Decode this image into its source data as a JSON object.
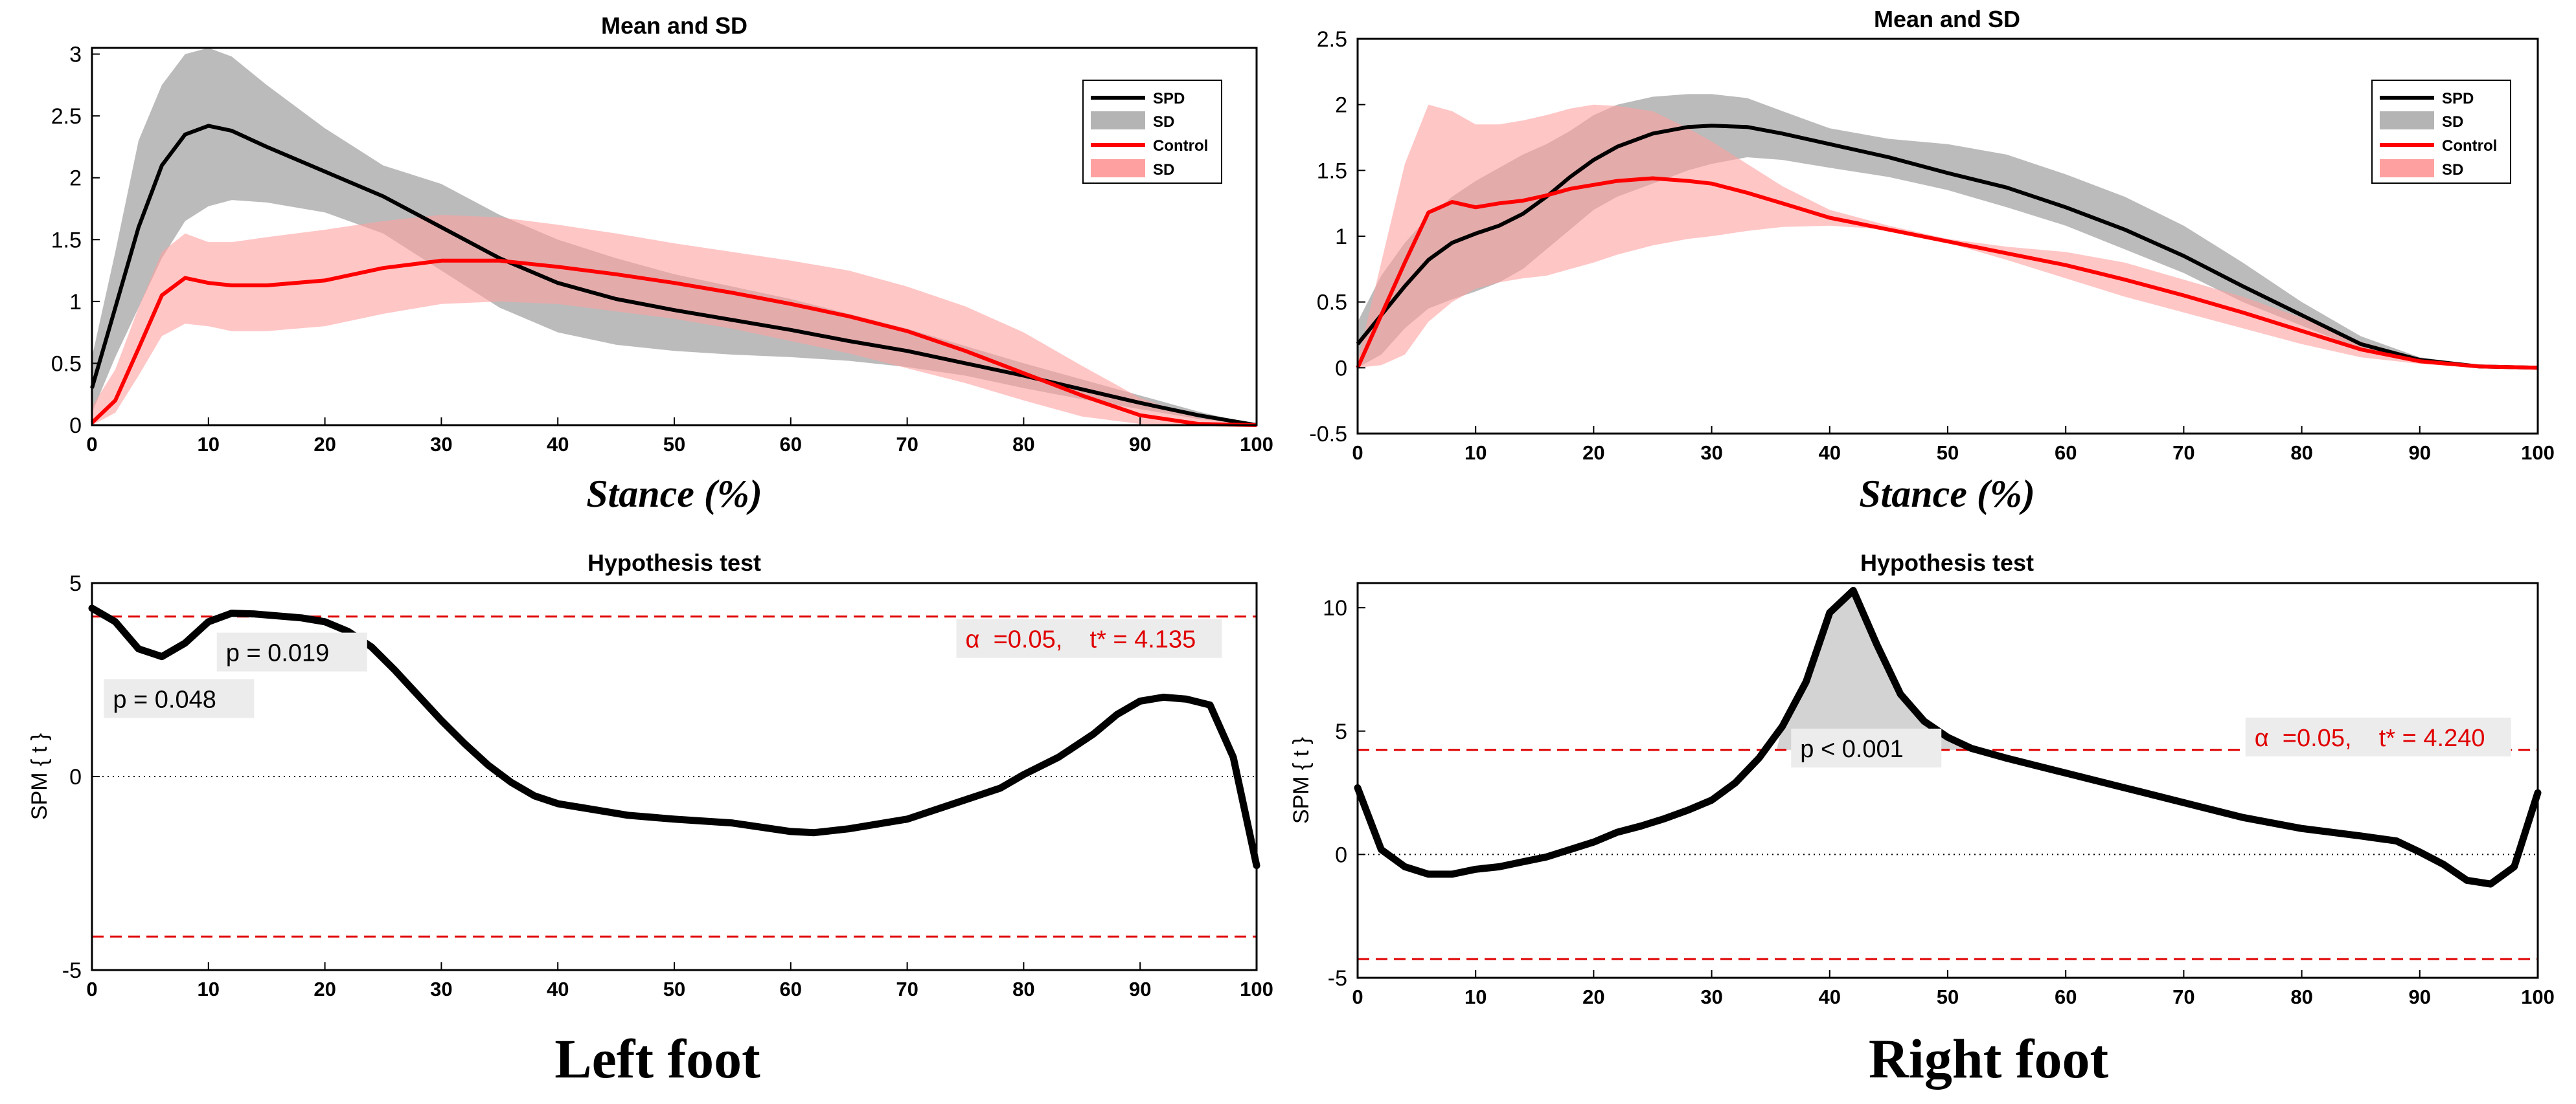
{
  "colors": {
    "spd": "#000000",
    "spd_band": "#b4b4b4",
    "control": "#ff0000",
    "control_band": "#ffa0a0",
    "threshold": "#e00000",
    "cluster": "#d3d3d3",
    "annotation_bg": "#ececec"
  },
  "captions": {
    "left": "Left foot",
    "right": "Right foot"
  },
  "chart_data": [
    {
      "id": "left_mean",
      "type": "line",
      "title": "Mean and SD",
      "xlabel": "Stance (%)",
      "ylabel": "",
      "xlim": [
        0,
        100
      ],
      "ylim": [
        0,
        3.05
      ],
      "xticks": [
        0,
        10,
        20,
        30,
        40,
        50,
        60,
        70,
        80,
        90,
        100
      ],
      "yticks": [
        0,
        0.5,
        1,
        1.5,
        2,
        2.5,
        3
      ],
      "ytick_labels": [
        "0",
        "0.5",
        "1",
        "1.5",
        "2",
        "2.5",
        "3"
      ],
      "legend": {
        "position": "top-right",
        "entries": [
          "SPD",
          "SD",
          "Control",
          "SD"
        ]
      },
      "series": [
        {
          "name": "SPD",
          "x": [
            0,
            2,
            4,
            6,
            8,
            10,
            12,
            15,
            20,
            25,
            30,
            35,
            40,
            45,
            50,
            55,
            60,
            65,
            70,
            75,
            80,
            85,
            90,
            95,
            100
          ],
          "y": [
            0.3,
            0.95,
            1.6,
            2.1,
            2.35,
            2.42,
            2.38,
            2.25,
            2.05,
            1.85,
            1.6,
            1.35,
            1.15,
            1.02,
            0.93,
            0.85,
            0.77,
            0.68,
            0.6,
            0.5,
            0.4,
            0.29,
            0.18,
            0.08,
            0.0
          ],
          "lower": [
            0.1,
            0.55,
            0.95,
            1.35,
            1.65,
            1.77,
            1.82,
            1.8,
            1.72,
            1.55,
            1.25,
            0.95,
            0.75,
            0.65,
            0.6,
            0.57,
            0.55,
            0.52,
            0.47,
            0.4,
            0.3,
            0.21,
            0.13,
            0.05,
            0.0
          ],
          "upper": [
            0.55,
            1.4,
            2.3,
            2.75,
            3.0,
            3.05,
            2.98,
            2.75,
            2.4,
            2.1,
            1.95,
            1.7,
            1.5,
            1.35,
            1.22,
            1.12,
            1.02,
            0.9,
            0.78,
            0.64,
            0.5,
            0.37,
            0.24,
            0.11,
            0.0
          ]
        },
        {
          "name": "Control",
          "x": [
            0,
            2,
            4,
            6,
            8,
            10,
            12,
            15,
            20,
            25,
            30,
            35,
            40,
            45,
            50,
            55,
            60,
            65,
            70,
            75,
            80,
            85,
            90,
            95,
            100
          ],
          "y": [
            0.02,
            0.2,
            0.62,
            1.05,
            1.19,
            1.15,
            1.13,
            1.13,
            1.17,
            1.27,
            1.33,
            1.33,
            1.28,
            1.22,
            1.15,
            1.07,
            0.98,
            0.88,
            0.76,
            0.6,
            0.42,
            0.24,
            0.08,
            0.01,
            0.0
          ],
          "lower": [
            0.0,
            0.1,
            0.4,
            0.72,
            0.82,
            0.8,
            0.76,
            0.76,
            0.8,
            0.9,
            0.98,
            1.0,
            0.98,
            0.92,
            0.86,
            0.78,
            0.68,
            0.58,
            0.46,
            0.34,
            0.2,
            0.07,
            0.01,
            0.0,
            0.0
          ],
          "upper": [
            0.15,
            0.45,
            0.95,
            1.4,
            1.55,
            1.48,
            1.48,
            1.52,
            1.58,
            1.65,
            1.7,
            1.68,
            1.62,
            1.55,
            1.47,
            1.4,
            1.33,
            1.25,
            1.12,
            0.96,
            0.75,
            0.48,
            0.22,
            0.06,
            0.0
          ]
        }
      ]
    },
    {
      "id": "right_mean",
      "type": "line",
      "title": "Mean and SD",
      "xlabel": "Stance (%)",
      "ylabel": "",
      "xlim": [
        0,
        100
      ],
      "ylim": [
        -0.5,
        2.5
      ],
      "xticks": [
        0,
        10,
        20,
        30,
        40,
        50,
        60,
        70,
        80,
        90,
        100
      ],
      "yticks": [
        -0.5,
        0,
        0.5,
        1,
        1.5,
        2,
        2.5
      ],
      "ytick_labels": [
        "-0.5",
        "0",
        "0.5",
        "1",
        "1.5",
        "2",
        "2.5"
      ],
      "legend": {
        "position": "top-right",
        "entries": [
          "SPD",
          "SD",
          "Control",
          "SD"
        ]
      },
      "series": [
        {
          "name": "SPD",
          "x": [
            0,
            2,
            4,
            6,
            8,
            10,
            12,
            14,
            16,
            18,
            20,
            22,
            25,
            28,
            30,
            33,
            36,
            40,
            45,
            50,
            55,
            60,
            65,
            70,
            75,
            80,
            85,
            90,
            95,
            100
          ],
          "y": [
            0.18,
            0.4,
            0.62,
            0.82,
            0.95,
            1.02,
            1.08,
            1.17,
            1.3,
            1.45,
            1.58,
            1.68,
            1.78,
            1.83,
            1.84,
            1.83,
            1.78,
            1.7,
            1.6,
            1.48,
            1.37,
            1.22,
            1.05,
            0.85,
            0.62,
            0.4,
            0.18,
            0.06,
            0.01,
            0.0
          ],
          "lower": [
            0.0,
            0.1,
            0.3,
            0.45,
            0.52,
            0.58,
            0.65,
            0.75,
            0.9,
            1.05,
            1.2,
            1.3,
            1.4,
            1.5,
            1.55,
            1.6,
            1.58,
            1.52,
            1.45,
            1.35,
            1.22,
            1.08,
            0.9,
            0.72,
            0.5,
            0.32,
            0.14,
            0.05,
            0.01,
            0.0
          ],
          "upper": [
            0.35,
            0.7,
            0.95,
            1.15,
            1.3,
            1.42,
            1.52,
            1.62,
            1.7,
            1.8,
            1.92,
            2.0,
            2.06,
            2.08,
            2.08,
            2.05,
            1.95,
            1.82,
            1.74,
            1.7,
            1.62,
            1.47,
            1.3,
            1.08,
            0.8,
            0.5,
            0.24,
            0.08,
            0.02,
            0.0
          ]
        },
        {
          "name": "Control",
          "x": [
            0,
            2,
            4,
            6,
            8,
            10,
            12,
            14,
            16,
            18,
            20,
            22,
            25,
            28,
            30,
            33,
            36,
            40,
            45,
            50,
            55,
            60,
            65,
            70,
            75,
            80,
            85,
            90,
            95,
            100
          ],
          "y": [
            0.0,
            0.4,
            0.8,
            1.18,
            1.26,
            1.22,
            1.25,
            1.27,
            1.31,
            1.36,
            1.39,
            1.42,
            1.44,
            1.42,
            1.4,
            1.33,
            1.25,
            1.14,
            1.05,
            0.96,
            0.87,
            0.78,
            0.67,
            0.55,
            0.42,
            0.28,
            0.14,
            0.05,
            0.01,
            0.0
          ],
          "lower": [
            0.0,
            0.02,
            0.1,
            0.35,
            0.5,
            0.6,
            0.65,
            0.68,
            0.7,
            0.75,
            0.8,
            0.86,
            0.93,
            0.98,
            1.0,
            1.04,
            1.07,
            1.08,
            1.05,
            0.95,
            0.82,
            0.68,
            0.54,
            0.42,
            0.3,
            0.18,
            0.08,
            0.03,
            0.0,
            0.0
          ],
          "upper": [
            0.05,
            0.8,
            1.55,
            2.0,
            1.95,
            1.85,
            1.85,
            1.88,
            1.92,
            1.97,
            2.0,
            1.99,
            1.95,
            1.82,
            1.72,
            1.55,
            1.38,
            1.2,
            1.08,
            0.98,
            0.92,
            0.88,
            0.8,
            0.67,
            0.54,
            0.38,
            0.2,
            0.07,
            0.02,
            0.0
          ]
        }
      ]
    },
    {
      "id": "left_spm",
      "type": "line",
      "title": "Hypothesis test",
      "xlabel": "",
      "ylabel": "SPM { t }",
      "xlim": [
        0,
        100
      ],
      "ylim": [
        -5,
        5
      ],
      "xticks": [
        0,
        10,
        20,
        30,
        40,
        50,
        60,
        70,
        80,
        90,
        100
      ],
      "yticks": [
        -5,
        0,
        5
      ],
      "ytick_labels": [
        "-5",
        "0",
        "5"
      ],
      "threshold": 4.135,
      "series": [
        {
          "name": "SPM t",
          "x": [
            0,
            2,
            4,
            6,
            8,
            10,
            12,
            14,
            16,
            18,
            20,
            22,
            24,
            26,
            28,
            30,
            32,
            34,
            36,
            38,
            40,
            43,
            46,
            50,
            55,
            60,
            62,
            65,
            70,
            75,
            78,
            80,
            83,
            86,
            88,
            90,
            92,
            94,
            96,
            98,
            100
          ],
          "y": [
            4.35,
            4.0,
            3.3,
            3.1,
            3.45,
            4.0,
            4.22,
            4.2,
            4.15,
            4.1,
            4.0,
            3.75,
            3.35,
            2.75,
            2.1,
            1.45,
            0.85,
            0.3,
            -0.15,
            -0.5,
            -0.7,
            -0.85,
            -1.0,
            -1.1,
            -1.2,
            -1.42,
            -1.45,
            -1.35,
            -1.1,
            -0.6,
            -0.3,
            0.05,
            0.5,
            1.1,
            1.6,
            1.95,
            2.05,
            2.0,
            1.85,
            0.5,
            -2.3
          ]
        }
      ],
      "annotations": [
        {
          "label": "p = 0.048",
          "x": 1.8,
          "y": 1.85
        },
        {
          "label": "p = 0.019",
          "x": 11.5,
          "y": 3.05
        },
        {
          "label": "α  =0.05,    t* = 4.135",
          "x": 75,
          "y": 3.4
        }
      ]
    },
    {
      "id": "right_spm",
      "type": "line",
      "title": "Hypothesis test",
      "xlabel": "",
      "ylabel": "SPM { t }",
      "xlim": [
        0,
        100
      ],
      "ylim": [
        -5,
        11
      ],
      "xticks": [
        0,
        10,
        20,
        30,
        40,
        50,
        60,
        70,
        80,
        90,
        100
      ],
      "yticks": [
        -5,
        0,
        5,
        10
      ],
      "ytick_labels": [
        "-5",
        "0",
        "5",
        "10"
      ],
      "threshold": 4.24,
      "series": [
        {
          "name": "SPM t",
          "x": [
            0,
            2,
            4,
            6,
            8,
            10,
            12,
            14,
            16,
            18,
            20,
            22,
            24,
            26,
            28,
            30,
            32,
            34,
            36,
            38,
            40,
            42,
            44,
            46,
            48,
            50,
            52,
            55,
            60,
            65,
            70,
            75,
            80,
            85,
            88,
            90,
            92,
            94,
            96,
            98,
            100
          ],
          "y": [
            2.7,
            0.2,
            -0.5,
            -0.8,
            -0.8,
            -0.6,
            -0.5,
            -0.3,
            -0.1,
            0.2,
            0.5,
            0.9,
            1.15,
            1.45,
            1.8,
            2.2,
            2.9,
            3.9,
            5.2,
            7.0,
            9.8,
            10.7,
            8.5,
            6.5,
            5.4,
            4.75,
            4.3,
            3.9,
            3.3,
            2.7,
            2.1,
            1.5,
            1.05,
            0.75,
            0.55,
            0.1,
            -0.4,
            -1.05,
            -1.2,
            -0.5,
            2.5
          ]
        }
      ],
      "cluster": {
        "x_start": 35.5,
        "x_end": 51.5
      },
      "annotations": [
        {
          "label": "p < 0.001",
          "x": 37.5,
          "y": 4.05
        },
        {
          "label": "α  =0.05,    t* = 4.240",
          "x": 76,
          "y": 4.5
        }
      ]
    }
  ]
}
